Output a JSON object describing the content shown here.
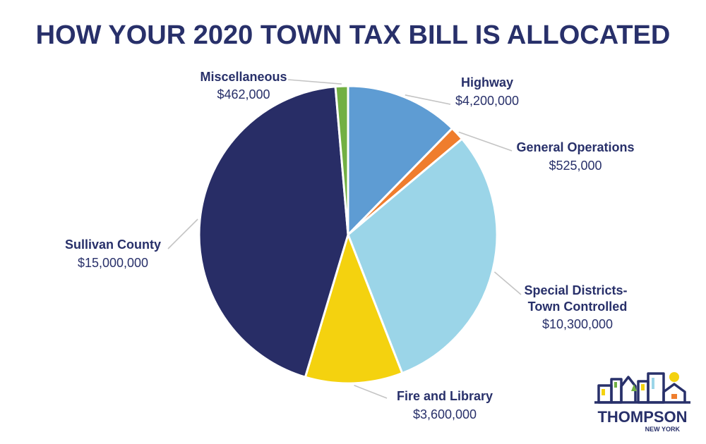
{
  "chart_data": {
    "type": "pie",
    "title": "HOW YOUR 2020 TOWN TAX BILL IS ALLOCATED",
    "slices": [
      {
        "name": "Highway",
        "value_label": "$4,200,000",
        "value": 4200000,
        "color": "#5e9cd3"
      },
      {
        "name": "General Operations",
        "value_label": "$525,000",
        "value": 525000,
        "color": "#ef7d2d"
      },
      {
        "name": "Special Districts-\nTown Controlled",
        "value_label": "$10,300,000",
        "value": 10300000,
        "color": "#9bd5e8"
      },
      {
        "name": "Fire and Library",
        "value_label": "$3,600,000",
        "value": 3600000,
        "color": "#f4d20f"
      },
      {
        "name": "Sullivan County",
        "value_label": "$15,000,000",
        "value": 15000000,
        "color": "#282d66"
      },
      {
        "name": "Miscellaneous",
        "value_label": "$462,000",
        "value": 462000,
        "color": "#72b043"
      }
    ]
  },
  "logo": {
    "word": "THOMPSON",
    "sub": "NEW YORK"
  }
}
